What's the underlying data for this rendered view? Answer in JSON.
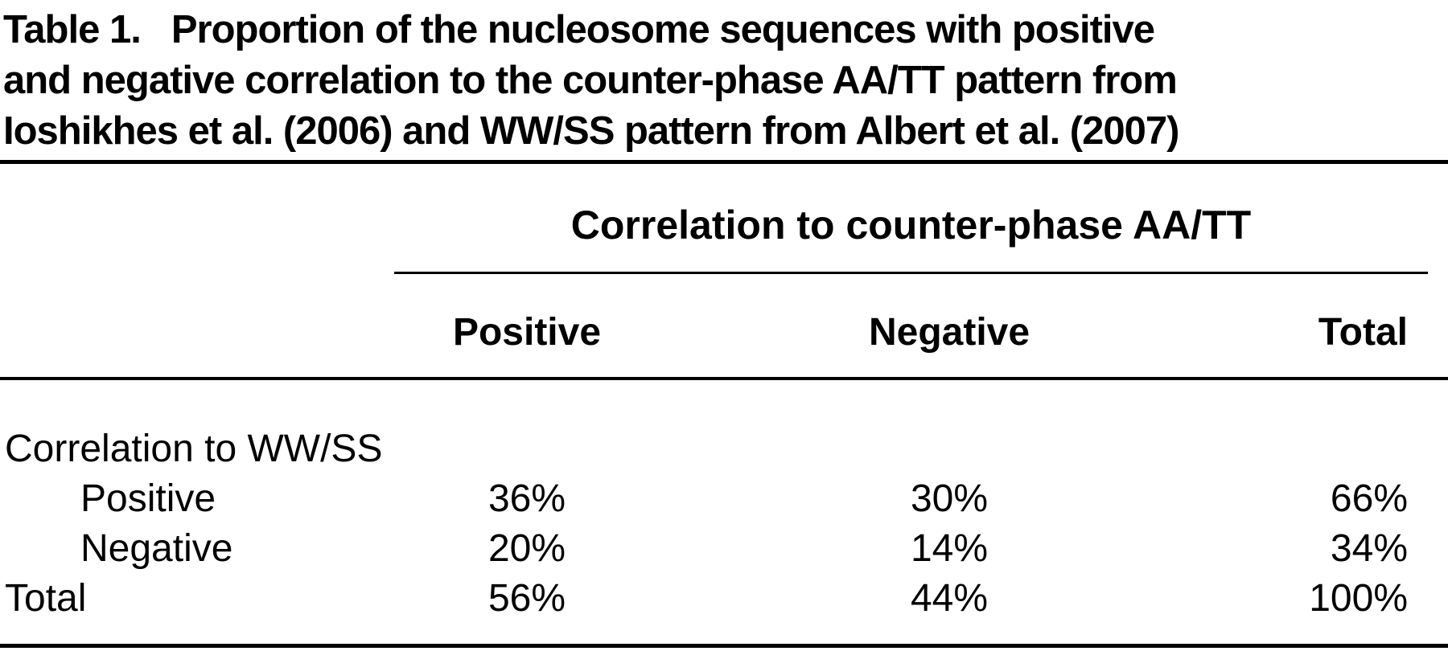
{
  "title": {
    "label": "Table 1.",
    "line1": "Proportion of the nucleosome sequences with positive",
    "line2": "and negative correlation to the counter-phase AA/TT pattern from",
    "line3": "Ioshikhes et al. (2006) and WW/SS pattern from Albert et al. (2007)"
  },
  "table": {
    "spanner_header": "Correlation to counter-phase AA/TT",
    "columns": [
      "Positive",
      "Negative",
      "Total"
    ],
    "row_group_label": "Correlation to WW/SS",
    "rows": [
      {
        "label": "Positive",
        "values": [
          "36%",
          "30%",
          "66%"
        ]
      },
      {
        "label": "Negative",
        "values": [
          "20%",
          "14%",
          "34%"
        ]
      },
      {
        "label": "Total",
        "values": [
          "56%",
          "44%",
          "100%"
        ]
      }
    ]
  },
  "chart_data": {
    "type": "table",
    "title": "Table 1. Proportion of the nucleosome sequences with positive and negative correlation to the counter-phase AA/TT pattern from Ioshikhes et al. (2006) and WW/SS pattern from Albert et al. (2007)",
    "column_group": "Correlation to counter-phase AA/TT",
    "columns": [
      "Positive",
      "Negative",
      "Total"
    ],
    "row_group": "Correlation to WW/SS",
    "rows": [
      {
        "label": "Positive",
        "positive_pct": 36,
        "negative_pct": 30,
        "total_pct": 66
      },
      {
        "label": "Negative",
        "positive_pct": 20,
        "negative_pct": 14,
        "total_pct": 34
      },
      {
        "label": "Total",
        "positive_pct": 56,
        "negative_pct": 44,
        "total_pct": 100
      }
    ]
  },
  "colors": {
    "text": "#000000",
    "background": "#ffffff",
    "rule": "#000000"
  }
}
